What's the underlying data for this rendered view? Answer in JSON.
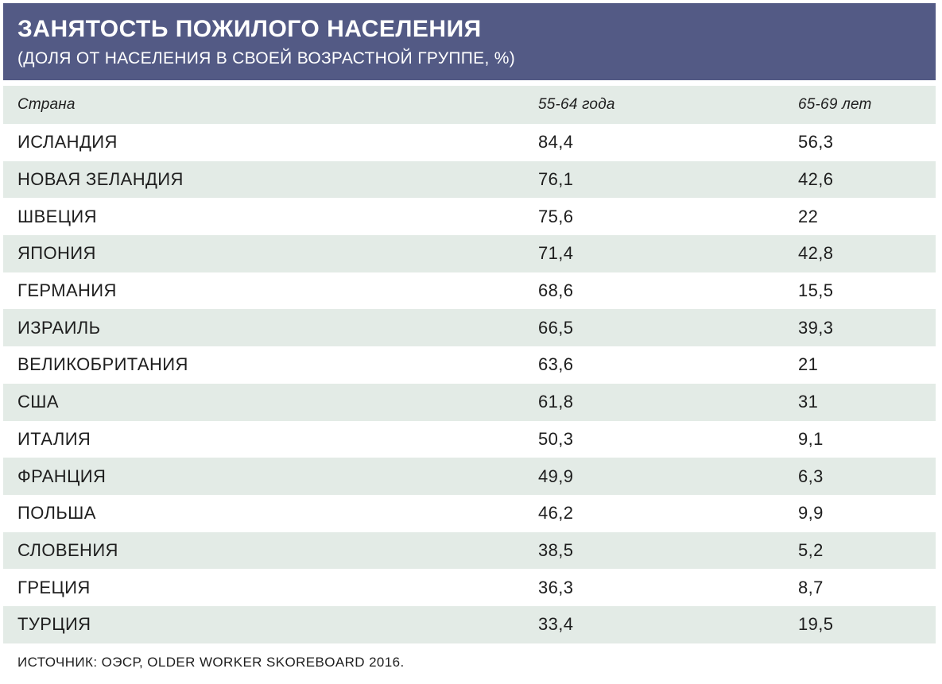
{
  "title": "ЗАНЯТОСТЬ ПОЖИЛОГО НАСЕЛЕНИЯ",
  "subtitle": "(ДОЛЯ ОТ НАСЕЛЕНИЯ В СВОЕЙ ВОЗРАСТНОЙ ГРУППЕ, %)",
  "colors": {
    "header_bg": "#535a85",
    "row_shade": "#e3ebe6"
  },
  "table": {
    "columns": [
      "Страна",
      "55-64 года",
      "65-69 лет"
    ],
    "rows": [
      [
        "ИСЛАНДИЯ",
        "84,4",
        "56,3"
      ],
      [
        "НОВАЯ ЗЕЛАНДИЯ",
        "76,1",
        "42,6"
      ],
      [
        "ШВЕЦИЯ",
        "75,6",
        "22"
      ],
      [
        "ЯПОНИЯ",
        "71,4",
        "42,8"
      ],
      [
        "ГЕРМАНИЯ",
        "68,6",
        "15,5"
      ],
      [
        "ИЗРАИЛЬ",
        "66,5",
        "39,3"
      ],
      [
        "ВЕЛИКОБРИТАНИЯ",
        "63,6",
        "21"
      ],
      [
        "США",
        "61,8",
        "31"
      ],
      [
        "ИТАЛИЯ",
        "50,3",
        "9,1"
      ],
      [
        "ФРАНЦИЯ",
        "49,9",
        "6,3"
      ],
      [
        "ПОЛЬША",
        "46,2",
        "9,9"
      ],
      [
        "СЛОВЕНИЯ",
        "38,5",
        "5,2"
      ],
      [
        "ГРЕЦИЯ",
        "36,3",
        "8,7"
      ],
      [
        "ТУРЦИЯ",
        "33,4",
        "19,5"
      ]
    ]
  },
  "source": "ИСТОЧНИК: ОЭСР, OLDER WORKER SKOREBOARD 2016."
}
